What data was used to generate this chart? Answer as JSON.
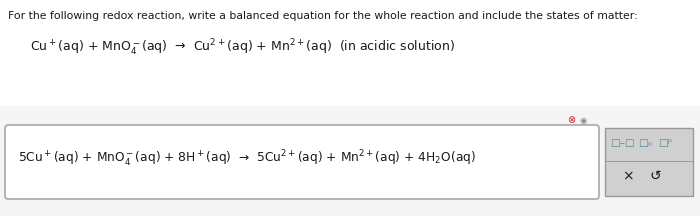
{
  "bg_color": "#e8e8e8",
  "white_bg": "#ffffff",
  "light_gray": "#f0f0f0",
  "panel_gray": "#d8d8d8",
  "title_text": "For the following redox reaction, write a balanced equation for the whole reaction and include the states of matter:",
  "question_line": "Cu$^+$(aq) + MnO$_4^-$(aq)  →  Cu$^{2+}$(aq) + Mn$^{2+}$(aq)  (in acidic solution)",
  "answer_line": "5Cu$^+$(aq) + MnO$_4^-$(aq) + 8H$^+$(aq)  →  5Cu$^{2+}$(aq) + Mn$^{2+}$(aq) + 4H$_2$O(aq)",
  "title_fontsize": 7.8,
  "question_fontsize": 9.0,
  "answer_fontsize": 8.8,
  "icon_fontsize": 7.5,
  "text_color": "#1a1a1a",
  "icon_color": "#5a8a9a",
  "box_edge_color": "#999999",
  "red_icon_color": "#cc2222",
  "gray_icon_color": "#888888"
}
